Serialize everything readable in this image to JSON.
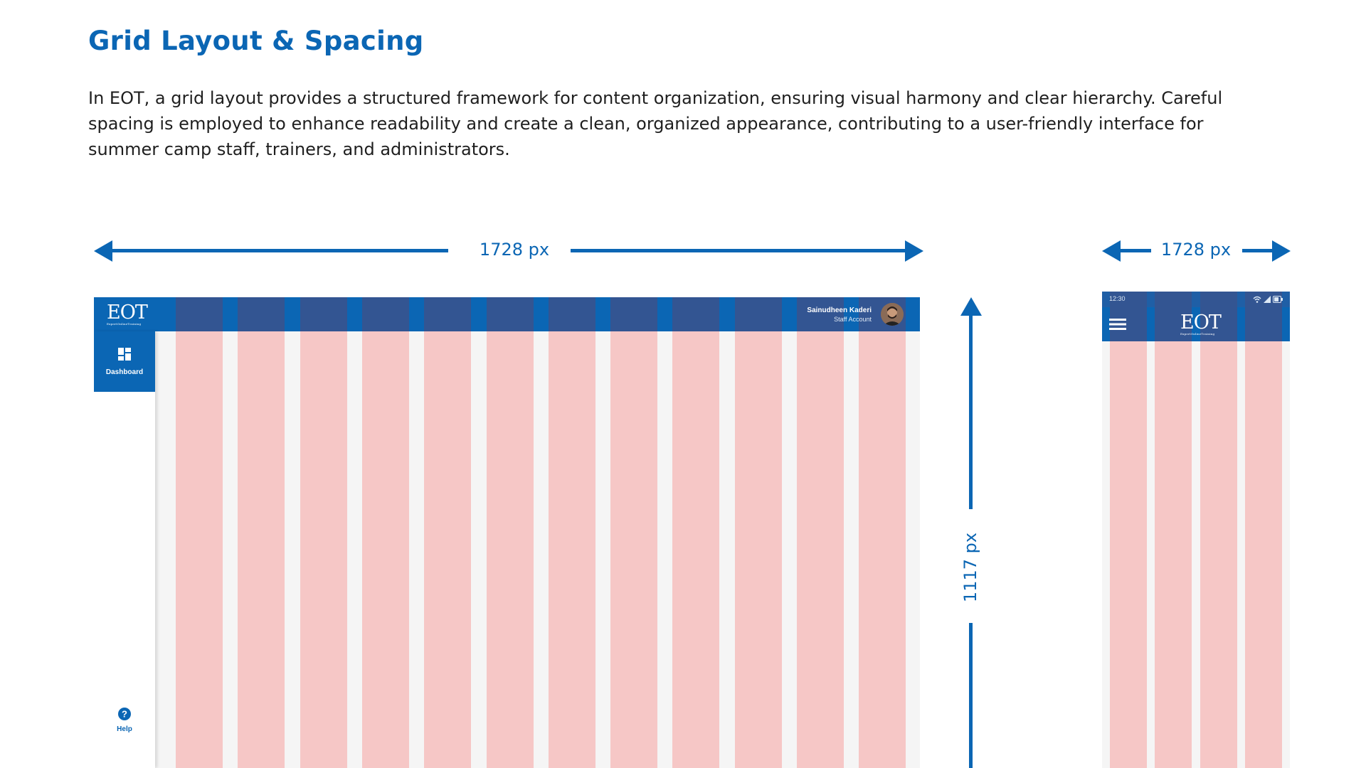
{
  "page": {
    "title": "Grid Layout & Spacing",
    "intro": "In EOT, a grid layout provides a structured framework for content organization, ensuring visual harmony and clear hierarchy. Careful spacing is employed to enhance readability and create a clean, organized appearance, contributing to a user-friendly interface for summer camp staff, trainers, and administrators."
  },
  "dimensions": {
    "desktop_width": "1728 px",
    "desktop_height": "1117 px",
    "mobile_width": "1728 px"
  },
  "desktop_mockup": {
    "logo_text": "EOT",
    "logo_subtext": "ExpertOnlineTraining",
    "user_name": "Sainudheen Kaderi",
    "user_role": "Staff Account",
    "nav_items": [
      {
        "label": "Dashboard",
        "icon": "dashboard-grid-icon",
        "active": true
      }
    ],
    "help_label": "Help",
    "help_icon": "help-circle-icon",
    "column_count": 12
  },
  "mobile_mockup": {
    "status_time": "12:30",
    "status_icons": [
      "wifi-icon",
      "signal-icon",
      "battery-icon"
    ],
    "menu_icon": "hamburger-menu-icon",
    "logo_text": "EOT",
    "logo_subtext": "ExpertOnlineTraining",
    "column_count": 4
  },
  "colors": {
    "brand_blue": "#0b66b4",
    "column_header_blue": "#335592",
    "grid_column_pink": "#f6c7c6",
    "canvas_gray": "#f5f5f5",
    "text_dark": "#1f1f1f"
  }
}
